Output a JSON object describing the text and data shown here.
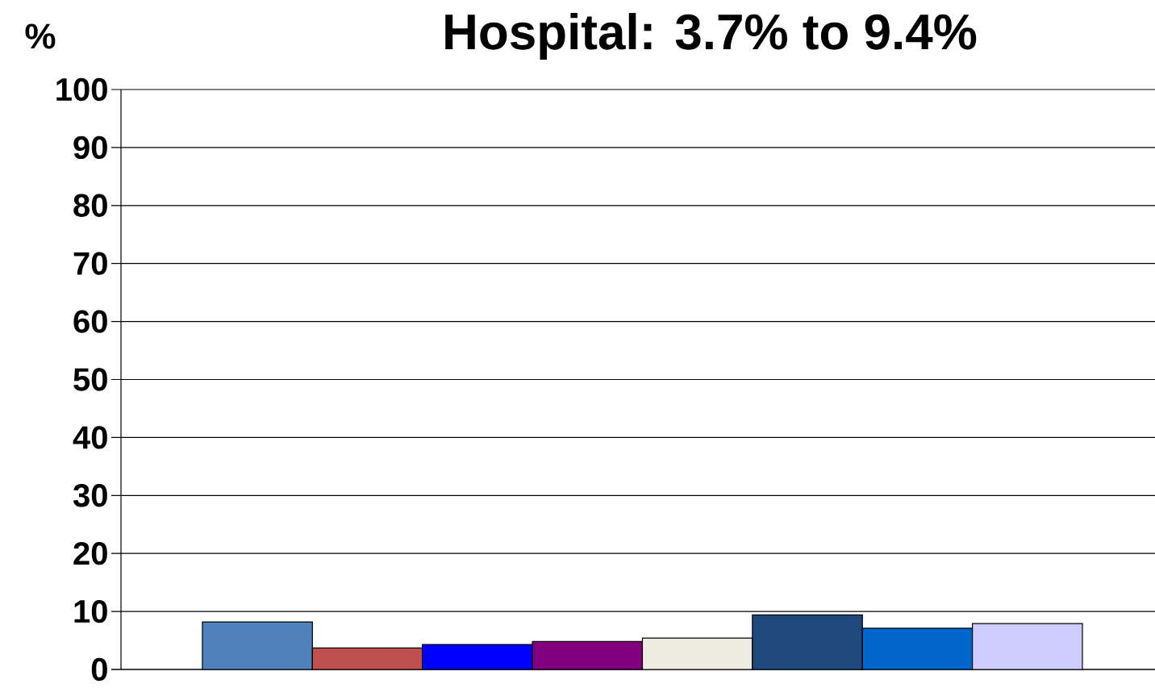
{
  "chart_data": {
    "type": "bar",
    "title": "Hospital: 3.7% to 9.4%",
    "ylabel": "%",
    "categories": [
      null,
      null,
      null,
      null,
      null,
      null,
      null,
      null
    ],
    "values": [
      8.2,
      3.7,
      4.3,
      4.8,
      5.4,
      9.4,
      7.1,
      7.9
    ],
    "colors": [
      "#4f81bd",
      "#c0504d",
      "#0000ff",
      "#800080",
      "#eeece1",
      "#1f497d",
      "#0066cc",
      "#ccccff"
    ],
    "ylim": [
      0,
      100
    ],
    "yticks": [
      0,
      10,
      20,
      30,
      40,
      50,
      60,
      70,
      80,
      90,
      100
    ],
    "grid": "y"
  }
}
